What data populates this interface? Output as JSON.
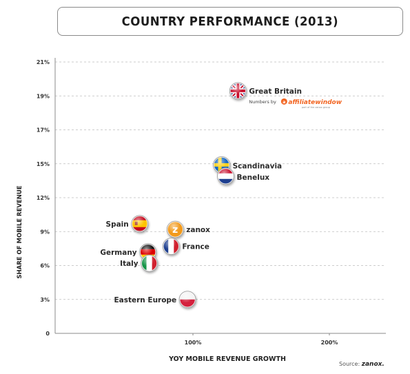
{
  "chart_data": {
    "type": "scatter",
    "title": "COUNTRY PERFORMANCE (2013)",
    "xlabel": "YOY MOBILE REVENUE GROWTH",
    "ylabel": "SHARE OF MOBILE REVENUE",
    "x_ticks": [
      {
        "value": 100,
        "label": "100%"
      },
      {
        "value": 200,
        "label": "200%"
      }
    ],
    "y_ticks": [
      {
        "value": 0,
        "label": "0"
      },
      {
        "value": 3,
        "label": "3%"
      },
      {
        "value": 6,
        "label": "6%"
      },
      {
        "value": 9,
        "label": "9%"
      },
      {
        "value": 12,
        "label": "12%"
      },
      {
        "value": 15,
        "label": "15%"
      },
      {
        "value": 17,
        "label": "17%"
      },
      {
        "value": 19,
        "label": "19%"
      },
      {
        "value": 21,
        "label": "21%"
      }
    ],
    "xlim": [
      0,
      240
    ],
    "ylim": [
      0,
      21
    ],
    "grid": true,
    "points": [
      {
        "label": "Great Britain",
        "x": 133,
        "y": 19.3,
        "flag": "great-britain-flag"
      },
      {
        "label": "Scandinavia",
        "x": 121,
        "y": 14.9,
        "flag": "scandinavia-flag"
      },
      {
        "label": "Benelux",
        "x": 124,
        "y": 13.9,
        "flag": "benelux-flag"
      },
      {
        "label": "Spain",
        "x": 61,
        "y": 9.7,
        "flag": "spain-flag"
      },
      {
        "label": "zanox",
        "x": 87,
        "y": 9.2,
        "flag": "zanox-logo"
      },
      {
        "label": "France",
        "x": 84,
        "y": 7.7,
        "flag": "france-flag"
      },
      {
        "label": "Germany",
        "x": 67,
        "y": 7.2,
        "flag": "germany-flag"
      },
      {
        "label": "Italy",
        "x": 68,
        "y": 6.2,
        "flag": "italy-flag"
      },
      {
        "label": "Eastern Europe",
        "x": 96,
        "y": 3.0,
        "flag": "poland-flag"
      }
    ]
  },
  "annotation": {
    "prefix": "Numbers by",
    "brand": "affiliatewindow",
    "brand_affix": "a",
    "tagline": "part of the zanox group"
  },
  "source": {
    "label": "Source:",
    "brand": "zanox."
  },
  "colors": {
    "grid": "#bdbdbd",
    "axis": "#8a8a8a",
    "text": "#333333",
    "aw_orange": "#f26522",
    "zanox_orange": "#f29a1c"
  }
}
